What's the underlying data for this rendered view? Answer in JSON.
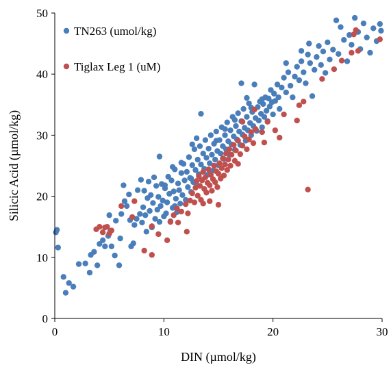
{
  "chart_data": {
    "type": "scatter",
    "xlabel": "DIN (µmol/kg)",
    "ylabel": "Silicic Acid (µmol/kg)",
    "xlim": [
      0,
      30
    ],
    "ylim": [
      0,
      50
    ],
    "xticks": [
      0,
      10,
      20,
      30
    ],
    "yticks": [
      0,
      10,
      20,
      30,
      40,
      50
    ],
    "grid": false,
    "legend_position": "top-left",
    "series": [
      {
        "name": "TN263 (umol/kg)",
        "color": "#4a7ebb",
        "points": [
          [
            0.1,
            14.1
          ],
          [
            0.2,
            14.5
          ],
          [
            0.3,
            11.6
          ],
          [
            0.8,
            6.8
          ],
          [
            1.0,
            4.2
          ],
          [
            1.3,
            5.8
          ],
          [
            1.7,
            5.2
          ],
          [
            2.2,
            8.9
          ],
          [
            2.8,
            9.0
          ],
          [
            3.2,
            7.5
          ],
          [
            3.3,
            10.4
          ],
          [
            3.6,
            10.9
          ],
          [
            3.9,
            8.7
          ],
          [
            4.1,
            12.2
          ],
          [
            4.4,
            12.8
          ],
          [
            4.6,
            11.8
          ],
          [
            4.9,
            13.5
          ],
          [
            5.0,
            16.9
          ],
          [
            5.1,
            14.3
          ],
          [
            5.2,
            11.8
          ],
          [
            5.5,
            10.3
          ],
          [
            5.9,
            8.7
          ],
          [
            6.0,
            13.1
          ],
          [
            6.1,
            17.1
          ],
          [
            6.4,
            19.2
          ],
          [
            6.6,
            18.4
          ],
          [
            6.8,
            20.3
          ],
          [
            6.9,
            16.1
          ],
          [
            7.0,
            11.8
          ],
          [
            7.2,
            12.3
          ],
          [
            7.3,
            15.3
          ],
          [
            7.5,
            16.3
          ],
          [
            7.6,
            21.0
          ],
          [
            7.8,
            17.1
          ],
          [
            7.9,
            22.7
          ],
          [
            8.0,
            15.7
          ],
          [
            8.1,
            18.2
          ],
          [
            8.2,
            20.9
          ],
          [
            8.3,
            16.9
          ],
          [
            8.4,
            14.2
          ],
          [
            8.5,
            19.7
          ],
          [
            8.6,
            22.4
          ],
          [
            8.7,
            17.6
          ],
          [
            8.8,
            20.2
          ],
          [
            8.9,
            14.9
          ],
          [
            9.0,
            18.9
          ],
          [
            9.1,
            23.1
          ],
          [
            9.2,
            16.3
          ],
          [
            9.3,
            21.7
          ],
          [
            9.4,
            17.8
          ],
          [
            9.5,
            19.9
          ],
          [
            9.6,
            15.8
          ],
          [
            9.7,
            18.4
          ],
          [
            9.8,
            22.0
          ],
          [
            9.9,
            19.3
          ],
          [
            10.0,
            16.7
          ],
          [
            10.1,
            21.3
          ],
          [
            10.2,
            17.2
          ],
          [
            10.3,
            19.0
          ],
          [
            10.4,
            23.2
          ],
          [
            10.5,
            20.4
          ],
          [
            10.6,
            15.9
          ],
          [
            10.7,
            22.6
          ],
          [
            10.8,
            18.1
          ],
          [
            10.9,
            20.8
          ],
          [
            11.0,
            24.4
          ],
          [
            11.1,
            19.6
          ],
          [
            11.2,
            17.4
          ],
          [
            11.3,
            22.1
          ],
          [
            11.4,
            21.0
          ],
          [
            11.5,
            18.8
          ],
          [
            11.6,
            23.8
          ],
          [
            11.7,
            20.2
          ],
          [
            11.8,
            25.3
          ],
          [
            11.9,
            22.6
          ],
          [
            12.0,
            19.4
          ],
          [
            12.1,
            24.0
          ],
          [
            12.2,
            21.5
          ],
          [
            12.3,
            26.4
          ],
          [
            12.4,
            23.0
          ],
          [
            12.5,
            20.7
          ],
          [
            12.6,
            25.1
          ],
          [
            12.7,
            22.3
          ],
          [
            12.8,
            27.7
          ],
          [
            12.9,
            24.3
          ],
          [
            13.0,
            21.8
          ],
          [
            13.1,
            26.0
          ],
          [
            13.2,
            23.6
          ],
          [
            13.3,
            28.2
          ],
          [
            13.4,
            25.2
          ],
          [
            13.5,
            22.7
          ],
          [
            13.6,
            27.0
          ],
          [
            13.7,
            24.5
          ],
          [
            13.8,
            29.2
          ],
          [
            13.9,
            26.3
          ],
          [
            14.0,
            23.5
          ],
          [
            14.1,
            27.8
          ],
          [
            14.2,
            25.4
          ],
          [
            14.3,
            30.0
          ],
          [
            14.4,
            26.8
          ],
          [
            14.5,
            24.2
          ],
          [
            14.6,
            28.6
          ],
          [
            14.7,
            26.0
          ],
          [
            14.8,
            30.6
          ],
          [
            14.9,
            27.4
          ],
          [
            15.0,
            25.1
          ],
          [
            15.1,
            29.2
          ],
          [
            15.2,
            27.0
          ],
          [
            15.3,
            31.3
          ],
          [
            15.4,
            28.2
          ],
          [
            15.5,
            26.1
          ],
          [
            15.6,
            30.0
          ],
          [
            15.7,
            27.7
          ],
          [
            15.8,
            32.1
          ],
          [
            15.9,
            29.0
          ],
          [
            16.0,
            26.8
          ],
          [
            16.1,
            30.8
          ],
          [
            16.2,
            28.5
          ],
          [
            16.3,
            33.0
          ],
          [
            16.4,
            29.8
          ],
          [
            16.5,
            27.6
          ],
          [
            16.6,
            31.5
          ],
          [
            16.7,
            29.3
          ],
          [
            16.8,
            33.6
          ],
          [
            16.9,
            30.6
          ],
          [
            17.0,
            28.4
          ],
          [
            17.1,
            32.3
          ],
          [
            17.2,
            30.1
          ],
          [
            17.3,
            34.3
          ],
          [
            17.4,
            31.2
          ],
          [
            17.5,
            29.1
          ],
          [
            17.6,
            33.0
          ],
          [
            17.7,
            30.8
          ],
          [
            17.8,
            35.2
          ],
          [
            17.9,
            32.0
          ],
          [
            18.0,
            30.0
          ],
          [
            18.1,
            33.8
          ],
          [
            18.2,
            31.5
          ],
          [
            18.3,
            38.3
          ],
          [
            18.4,
            32.8
          ],
          [
            18.5,
            30.7
          ],
          [
            18.6,
            34.6
          ],
          [
            18.7,
            32.4
          ],
          [
            18.8,
            35.5
          ],
          [
            18.9,
            33.5
          ],
          [
            19.0,
            31.3
          ],
          [
            19.1,
            35.1
          ],
          [
            19.2,
            33.0
          ],
          [
            19.3,
            36.2
          ],
          [
            19.4,
            34.0
          ],
          [
            19.5,
            32.3
          ],
          [
            19.6,
            36.0
          ],
          [
            19.7,
            34.7
          ],
          [
            19.8,
            37.4
          ],
          [
            19.9,
            35.4
          ],
          [
            20.0,
            33.4
          ],
          [
            20.1,
            36.8
          ],
          [
            20.2,
            35.6
          ],
          [
            20.4,
            38.3
          ],
          [
            20.5,
            36.2
          ],
          [
            20.6,
            34.3
          ],
          [
            20.8,
            37.8
          ],
          [
            21.0,
            39.4
          ],
          [
            21.2,
            37.0
          ],
          [
            21.4,
            40.3
          ],
          [
            21.6,
            38.1
          ],
          [
            21.8,
            36.2
          ],
          [
            22.0,
            39.6
          ],
          [
            22.2,
            41.2
          ],
          [
            22.4,
            39.0
          ],
          [
            22.6,
            42.1
          ],
          [
            22.8,
            40.3
          ],
          [
            23.0,
            38.5
          ],
          [
            23.2,
            43.2
          ],
          [
            23.4,
            41.8
          ],
          [
            23.6,
            36.4
          ],
          [
            23.8,
            40.7
          ],
          [
            24.0,
            42.8
          ],
          [
            24.2,
            44.6
          ],
          [
            24.4,
            41.5
          ],
          [
            24.6,
            43.7
          ],
          [
            24.8,
            40.2
          ],
          [
            25.0,
            45.2
          ],
          [
            25.2,
            42.4
          ],
          [
            25.5,
            44.0
          ],
          [
            25.8,
            48.8
          ],
          [
            26.0,
            43.3
          ],
          [
            26.2,
            47.7
          ],
          [
            26.5,
            45.6
          ],
          [
            26.8,
            42.1
          ],
          [
            27.0,
            46.4
          ],
          [
            27.2,
            44.8
          ],
          [
            27.5,
            49.2
          ],
          [
            27.8,
            46.9
          ],
          [
            28.0,
            44.1
          ],
          [
            28.3,
            48.3
          ],
          [
            28.6,
            46.0
          ],
          [
            28.9,
            43.5
          ],
          [
            29.2,
            47.5
          ],
          [
            29.5,
            45.4
          ],
          [
            29.8,
            48.2
          ],
          [
            29.9,
            47.1
          ],
          [
            10.1,
            21.8
          ],
          [
            12.5,
            22.9
          ],
          [
            13.4,
            33.5
          ],
          [
            11.6,
            25.5
          ],
          [
            15.6,
            31.0
          ],
          [
            16.5,
            32.5
          ],
          [
            17.6,
            36.1
          ],
          [
            19.0,
            35.9
          ],
          [
            18.0,
            34.5
          ],
          [
            21.2,
            41.8
          ],
          [
            22.6,
            43.8
          ],
          [
            23.3,
            45.0
          ],
          [
            17.1,
            38.5
          ],
          [
            13.0,
            29.5
          ],
          [
            14.2,
            24.0
          ],
          [
            9.6,
            26.5
          ],
          [
            6.3,
            21.8
          ],
          [
            5.6,
            16.0
          ],
          [
            11.0,
            18.4
          ],
          [
            10.8,
            24.8
          ],
          [
            12.6,
            28.5
          ],
          [
            14.8,
            29.1
          ]
        ]
      },
      {
        "name": "Tiglax Leg 1 (uM)",
        "color": "#c0504d",
        "points": [
          [
            3.8,
            14.6
          ],
          [
            4.1,
            15.0
          ],
          [
            4.4,
            14.1
          ],
          [
            4.6,
            14.9
          ],
          [
            4.8,
            15.0
          ],
          [
            5.0,
            13.9
          ],
          [
            5.2,
            14.4
          ],
          [
            6.1,
            18.4
          ],
          [
            7.1,
            16.6
          ],
          [
            7.3,
            19.2
          ],
          [
            8.2,
            11.1
          ],
          [
            8.9,
            10.4
          ],
          [
            8.9,
            15.1
          ],
          [
            9.5,
            13.8
          ],
          [
            10.3,
            12.8
          ],
          [
            10.6,
            15.8
          ],
          [
            10.9,
            16.9
          ],
          [
            11.2,
            18.0
          ],
          [
            11.3,
            15.7
          ],
          [
            11.6,
            17.5
          ],
          [
            12.0,
            18.7
          ],
          [
            12.2,
            17.2
          ],
          [
            12.4,
            19.3
          ],
          [
            12.6,
            20.5
          ],
          [
            12.8,
            19.0
          ],
          [
            12.9,
            21.4
          ],
          [
            13.0,
            22.5
          ],
          [
            13.1,
            20.1
          ],
          [
            13.2,
            23.3
          ],
          [
            13.3,
            21.7
          ],
          [
            13.4,
            19.4
          ],
          [
            13.5,
            22.6
          ],
          [
            13.6,
            24.0
          ],
          [
            13.7,
            21.2
          ],
          [
            13.8,
            23.1
          ],
          [
            13.9,
            20.6
          ],
          [
            14.0,
            22.2
          ],
          [
            14.1,
            24.4
          ],
          [
            14.2,
            21.8
          ],
          [
            14.3,
            23.5
          ],
          [
            14.4,
            20.9
          ],
          [
            14.5,
            22.8
          ],
          [
            14.6,
            25.0
          ],
          [
            14.7,
            22.3
          ],
          [
            14.8,
            24.1
          ],
          [
            14.9,
            21.5
          ],
          [
            15.0,
            23.7
          ],
          [
            15.1,
            25.4
          ],
          [
            15.2,
            22.9
          ],
          [
            15.3,
            24.6
          ],
          [
            15.4,
            26.2
          ],
          [
            15.5,
            23.4
          ],
          [
            15.6,
            25.2
          ],
          [
            15.7,
            27.0
          ],
          [
            15.8,
            24.3
          ],
          [
            15.9,
            26.0
          ],
          [
            16.0,
            27.7
          ],
          [
            16.1,
            25.0
          ],
          [
            16.2,
            26.8
          ],
          [
            16.4,
            28.4
          ],
          [
            16.5,
            25.8
          ],
          [
            16.6,
            27.5
          ],
          [
            16.8,
            29.1
          ],
          [
            17.0,
            26.9
          ],
          [
            17.2,
            28.3
          ],
          [
            17.4,
            29.8
          ],
          [
            17.6,
            27.7
          ],
          [
            17.8,
            29.3
          ],
          [
            18.0,
            30.5
          ],
          [
            18.2,
            28.7
          ],
          [
            18.4,
            31.0
          ],
          [
            19.0,
            30.5
          ],
          [
            19.5,
            32.2
          ],
          [
            20.2,
            30.8
          ],
          [
            21.0,
            33.4
          ],
          [
            22.4,
            34.9
          ],
          [
            22.8,
            35.5
          ],
          [
            22.2,
            32.4
          ],
          [
            20.6,
            29.6
          ],
          [
            23.2,
            21.1
          ],
          [
            24.5,
            39.2
          ],
          [
            25.6,
            40.8
          ],
          [
            26.3,
            42.2
          ],
          [
            27.2,
            43.5
          ],
          [
            27.6,
            47.2
          ],
          [
            27.8,
            43.8
          ],
          [
            27.4,
            46.5
          ],
          [
            29.8,
            45.7
          ],
          [
            15.0,
            18.6
          ],
          [
            14.2,
            19.2
          ],
          [
            13.6,
            18.8
          ],
          [
            12.1,
            14.2
          ],
          [
            16.8,
            25.3
          ],
          [
            17.2,
            32.2
          ],
          [
            18.3,
            34.2
          ],
          [
            19.2,
            28.8
          ]
        ]
      }
    ]
  }
}
